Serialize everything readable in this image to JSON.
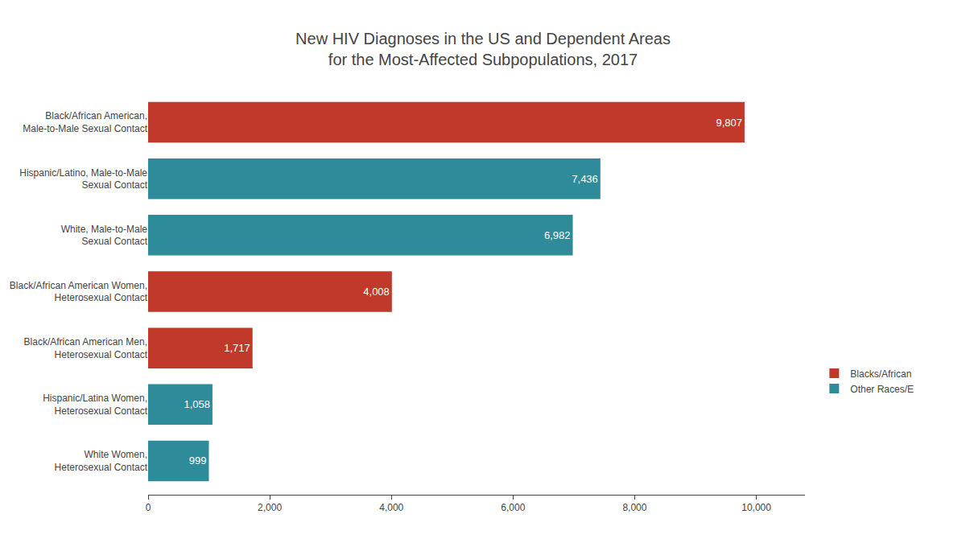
{
  "chart_data": {
    "type": "bar",
    "orientation": "horizontal",
    "title": "New HIV Diagnoses in the US and Dependent Areas",
    "subtitle": "for the Most-Affected Subpopulations, 2017",
    "categories": [
      "White Women,\nHeterosexual Contact",
      "Hispanic/Latina Women,\nHeterosexual Contact",
      "Black/African American Men,\nHeterosexual Contact",
      "Black/African American Women,\nHeterosexual Contact",
      "White, Male-to-Male\nSexual Contact",
      "Hispanic/Latino, Male-to-Male\nSexual Contact",
      "Black/African American,\nMale-to-Male Sexual Contact"
    ],
    "series": [
      {
        "name": "Blacks/African",
        "color": "#c0392b",
        "values": [
          null,
          null,
          1717,
          4008,
          null,
          null,
          9807
        ],
        "value_labels": [
          null,
          null,
          "1,717",
          "4,008",
          null,
          null,
          "9,807"
        ]
      },
      {
        "name": "Other Races/E",
        "color": "#2e8b9a",
        "values": [
          999,
          1058,
          null,
          null,
          6982,
          7436,
          null
        ],
        "value_labels": [
          "999",
          "1,058",
          null,
          null,
          "6,982",
          "7,436",
          null
        ]
      }
    ],
    "xlim": [
      0,
      10800
    ],
    "xticks": [
      0,
      {
        "value": 2000,
        "label": "2,000"
      },
      {
        "value": 4000,
        "label": "4,000"
      },
      {
        "value": 6000,
        "label": "6,000"
      },
      {
        "value": 8000,
        "label": "8,000"
      },
      {
        "value": 10000,
        "label": "10,000"
      }
    ],
    "data_labels": true,
    "grid": false,
    "legend": "right"
  }
}
